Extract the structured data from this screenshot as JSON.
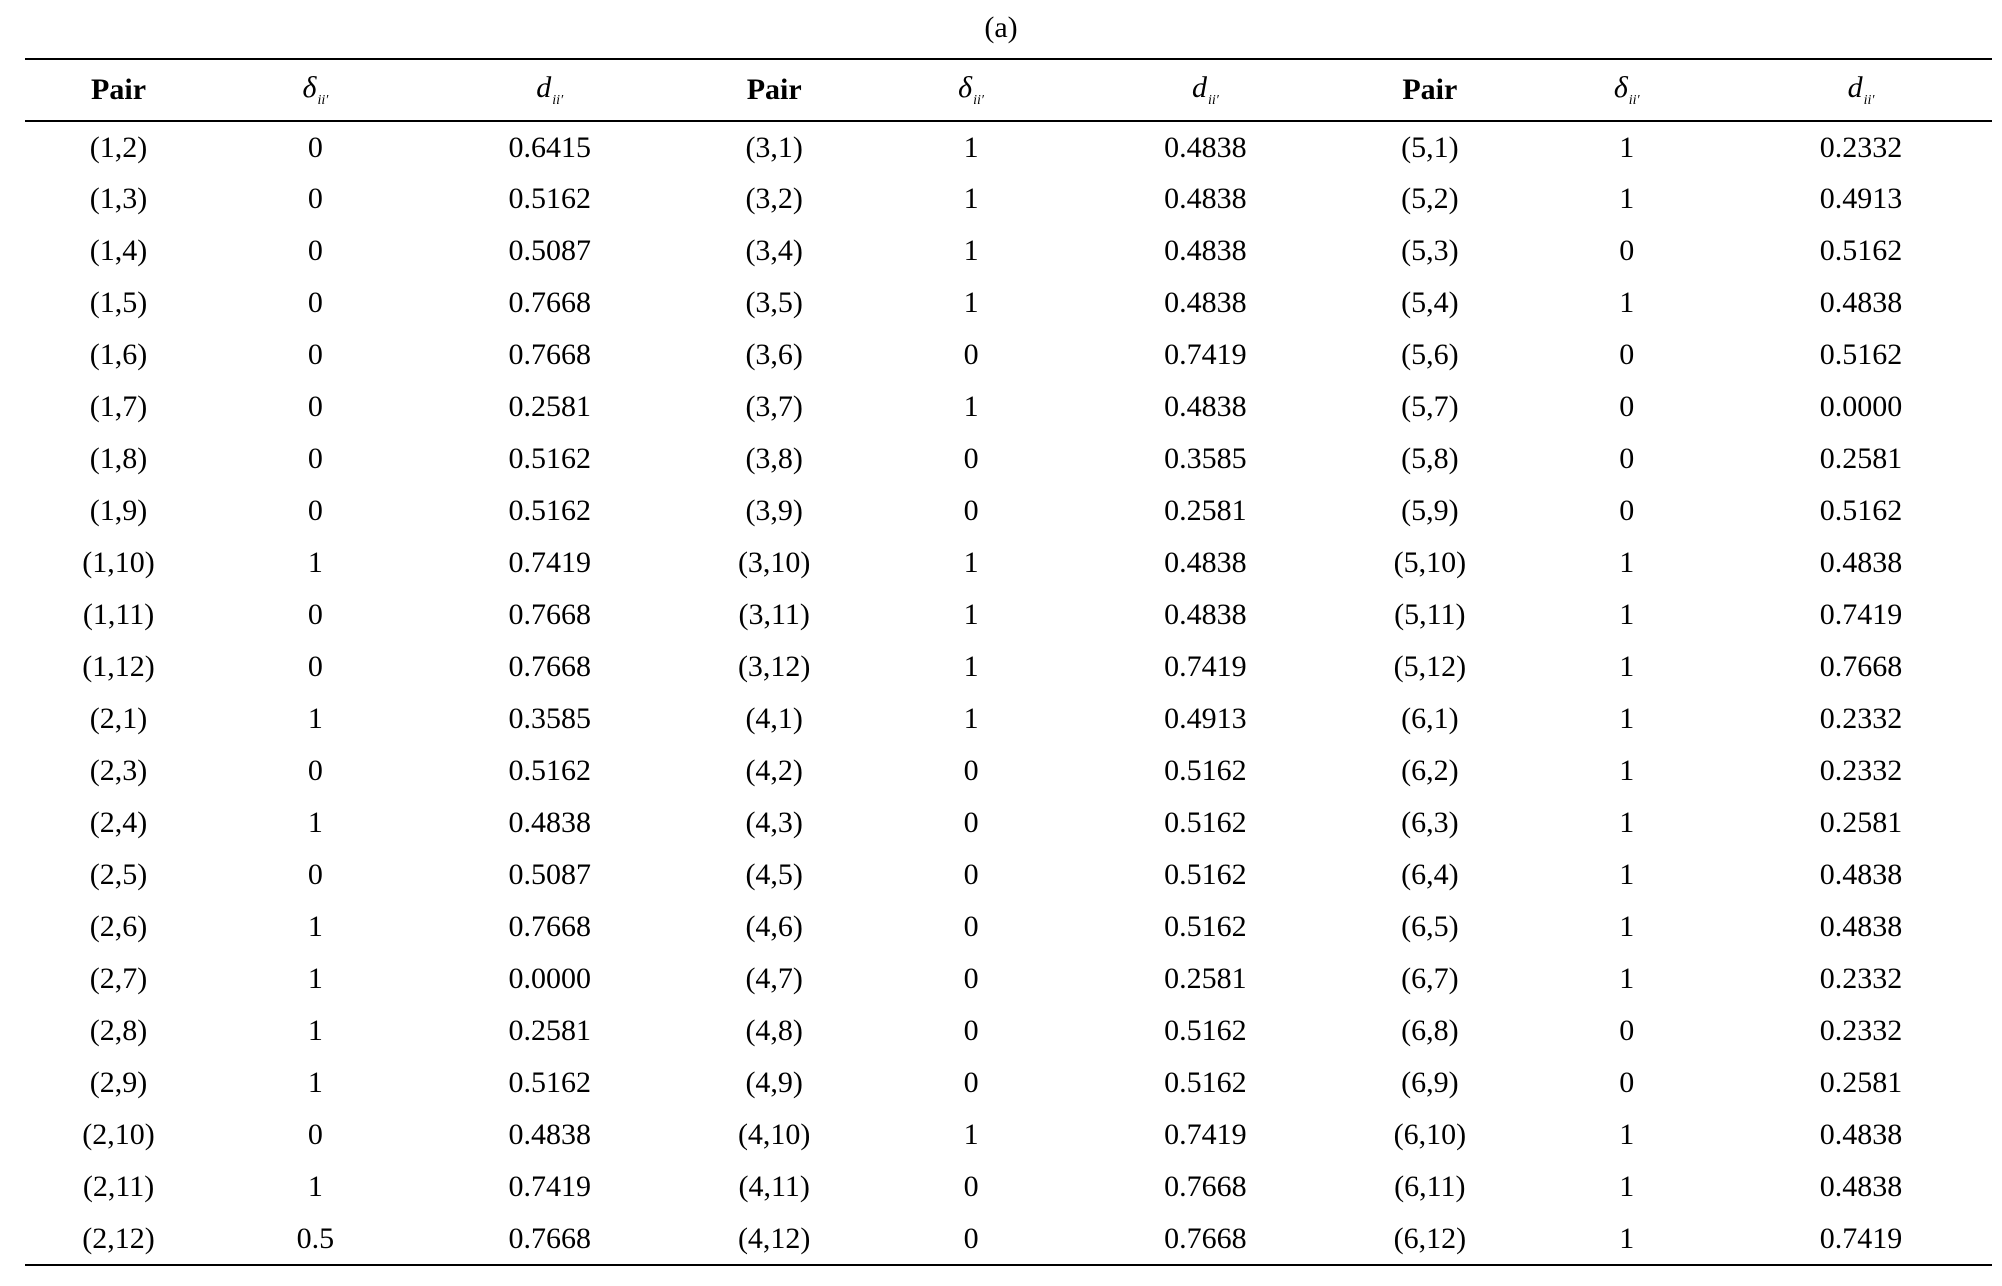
{
  "caption": "(a)",
  "header": {
    "pair": "Pair",
    "delta": "δ",
    "d": "d",
    "subscript": "ii′"
  },
  "rows": [
    [
      "(1,2)",
      "0",
      "0.6415",
      "(3,1)",
      "1",
      "0.4838",
      "(5,1)",
      "1",
      "0.2332"
    ],
    [
      "(1,3)",
      "0",
      "0.5162",
      "(3,2)",
      "1",
      "0.4838",
      "(5,2)",
      "1",
      "0.4913"
    ],
    [
      "(1,4)",
      "0",
      "0.5087",
      "(3,4)",
      "1",
      "0.4838",
      "(5,3)",
      "0",
      "0.5162"
    ],
    [
      "(1,5)",
      "0",
      "0.7668",
      "(3,5)",
      "1",
      "0.4838",
      "(5,4)",
      "1",
      "0.4838"
    ],
    [
      "(1,6)",
      "0",
      "0.7668",
      "(3,6)",
      "0",
      "0.7419",
      "(5,6)",
      "0",
      "0.5162"
    ],
    [
      "(1,7)",
      "0",
      "0.2581",
      "(3,7)",
      "1",
      "0.4838",
      "(5,7)",
      "0",
      "0.0000"
    ],
    [
      "(1,8)",
      "0",
      "0.5162",
      "(3,8)",
      "0",
      "0.3585",
      "(5,8)",
      "0",
      "0.2581"
    ],
    [
      "(1,9)",
      "0",
      "0.5162",
      "(3,9)",
      "0",
      "0.2581",
      "(5,9)",
      "0",
      "0.5162"
    ],
    [
      "(1,10)",
      "1",
      "0.7419",
      "(3,10)",
      "1",
      "0.4838",
      "(5,10)",
      "1",
      "0.4838"
    ],
    [
      "(1,11)",
      "0",
      "0.7668",
      "(3,11)",
      "1",
      "0.4838",
      "(5,11)",
      "1",
      "0.7419"
    ],
    [
      "(1,12)",
      "0",
      "0.7668",
      "(3,12)",
      "1",
      "0.7419",
      "(5,12)",
      "1",
      "0.7668"
    ],
    [
      "(2,1)",
      "1",
      "0.3585",
      "(4,1)",
      "1",
      "0.4913",
      "(6,1)",
      "1",
      "0.2332"
    ],
    [
      "(2,3)",
      "0",
      "0.5162",
      "(4,2)",
      "0",
      "0.5162",
      "(6,2)",
      "1",
      "0.2332"
    ],
    [
      "(2,4)",
      "1",
      "0.4838",
      "(4,3)",
      "0",
      "0.5162",
      "(6,3)",
      "1",
      "0.2581"
    ],
    [
      "(2,5)",
      "0",
      "0.5087",
      "(4,5)",
      "0",
      "0.5162",
      "(6,4)",
      "1",
      "0.4838"
    ],
    [
      "(2,6)",
      "1",
      "0.7668",
      "(4,6)",
      "0",
      "0.5162",
      "(6,5)",
      "1",
      "0.4838"
    ],
    [
      "(2,7)",
      "1",
      "0.0000",
      "(4,7)",
      "0",
      "0.2581",
      "(6,7)",
      "1",
      "0.2332"
    ],
    [
      "(2,8)",
      "1",
      "0.2581",
      "(4,8)",
      "0",
      "0.5162",
      "(6,8)",
      "0",
      "0.2332"
    ],
    [
      "(2,9)",
      "1",
      "0.5162",
      "(4,9)",
      "0",
      "0.5162",
      "(6,9)",
      "0",
      "0.2581"
    ],
    [
      "(2,10)",
      "0",
      "0.4838",
      "(4,10)",
      "1",
      "0.7419",
      "(6,10)",
      "1",
      "0.4838"
    ],
    [
      "(2,11)",
      "1",
      "0.7419",
      "(4,11)",
      "0",
      "0.7668",
      "(6,11)",
      "1",
      "0.4838"
    ],
    [
      "(2,12)",
      "0.5",
      "0.7668",
      "(4,12)",
      "0",
      "0.7668",
      "(6,12)",
      "1",
      "0.7419"
    ]
  ]
}
